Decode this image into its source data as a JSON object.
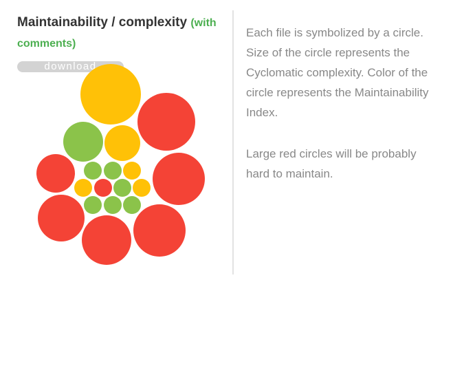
{
  "title": "Maintainability / complexity",
  "subtitle": "(with comments)",
  "download_label": "download",
  "description": {
    "paragraph_1": "Each file is symbolized by a circle. Size of the circle represents the Cyclomatic complexity. Color of the circle represents the Maintainability Index.",
    "paragraph_2": "Large red circles will be probably hard to maintain."
  },
  "colors": {
    "red": "#f44336",
    "yellow": "#ffc107",
    "green": "#8bc34a",
    "divider": "#e2e2e2",
    "title": "#333333",
    "subtitle": "#4caf50",
    "description": "#888888"
  },
  "chart_data": {
    "type": "bubble",
    "size_metric": "Cyclomatic complexity",
    "color_metric": "Maintainability Index",
    "circles": [
      {
        "color": "yellow",
        "relative_size": 44
      },
      {
        "color": "red",
        "relative_size": 42
      },
      {
        "color": "green",
        "relative_size": 29
      },
      {
        "color": "yellow",
        "relative_size": 26
      },
      {
        "color": "red",
        "relative_size": 28
      },
      {
        "color": "red",
        "relative_size": 38
      },
      {
        "color": "red",
        "relative_size": 34
      },
      {
        "color": "red",
        "relative_size": 36
      },
      {
        "color": "red",
        "relative_size": 38
      },
      {
        "color": "green",
        "relative_size": 13
      },
      {
        "color": "green",
        "relative_size": 13
      },
      {
        "color": "yellow",
        "relative_size": 13
      },
      {
        "color": "yellow",
        "relative_size": 13
      },
      {
        "color": "red",
        "relative_size": 13
      },
      {
        "color": "green",
        "relative_size": 13
      },
      {
        "color": "yellow",
        "relative_size": 13
      },
      {
        "color": "green",
        "relative_size": 13
      },
      {
        "color": "green",
        "relative_size": 13
      },
      {
        "color": "green",
        "relative_size": 13
      }
    ]
  }
}
